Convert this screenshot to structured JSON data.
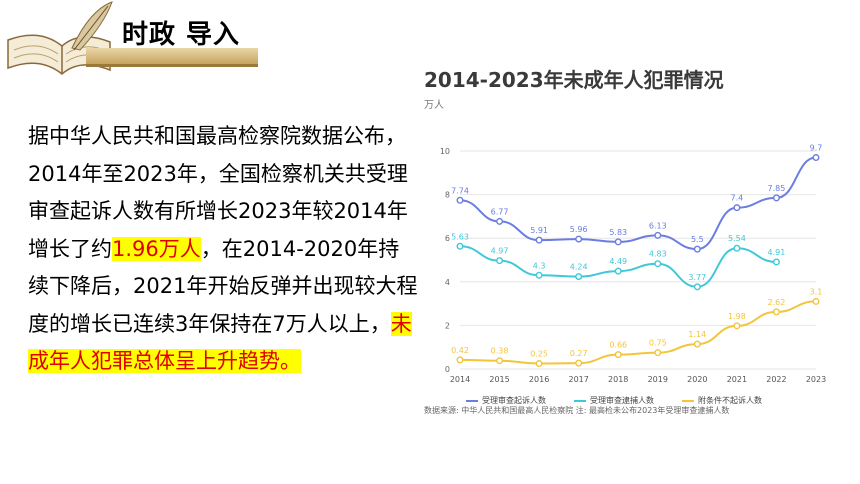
{
  "header": {
    "title": "时政 导入"
  },
  "body": {
    "p1": "据中华人民共和国最高检察院数据公布，2014年至2023年，全国检察机关共受理审查起诉人数有所增长2023年较2014年增长了约",
    "p2": "1.96万人",
    "p3": "，在2014-2020年持续下降后，2021年开始反弹并出现较大程度的增长已连续3年保持在7万人以上，",
    "p4": "未成年人犯罪总体呈上升趋势。"
  },
  "chart_data": {
    "type": "line",
    "title": "2014-2023年未成年人犯罪情况",
    "ylabel": "万人",
    "categories": [
      "2014",
      "2015",
      "2016",
      "2017",
      "2018",
      "2019",
      "2020",
      "2021",
      "2022",
      "2023"
    ],
    "ylim": [
      0,
      10
    ],
    "yticks": [
      0,
      2,
      4,
      6,
      8,
      10
    ],
    "series": [
      {
        "name": "受理审查起诉人数",
        "color": "#6b7de0",
        "values": [
          7.74,
          6.77,
          5.91,
          5.96,
          5.83,
          6.13,
          5.5,
          7.4,
          7.85,
          9.7
        ]
      },
      {
        "name": "受理审查逮捕人数",
        "color": "#3fc8d8",
        "values": [
          5.63,
          4.97,
          4.3,
          4.24,
          4.49,
          4.83,
          3.77,
          5.54,
          4.91,
          null
        ]
      },
      {
        "name": "附条件不起诉人数",
        "color": "#f3c53a",
        "values": [
          0.42,
          0.38,
          0.25,
          0.27,
          0.66,
          0.75,
          1.14,
          1.98,
          2.62,
          3.1
        ]
      }
    ],
    "source": "数据来源: 中华人民共和国最高人民检察院 注: 最高检未公布2023年受理审查逮捕人数"
  }
}
